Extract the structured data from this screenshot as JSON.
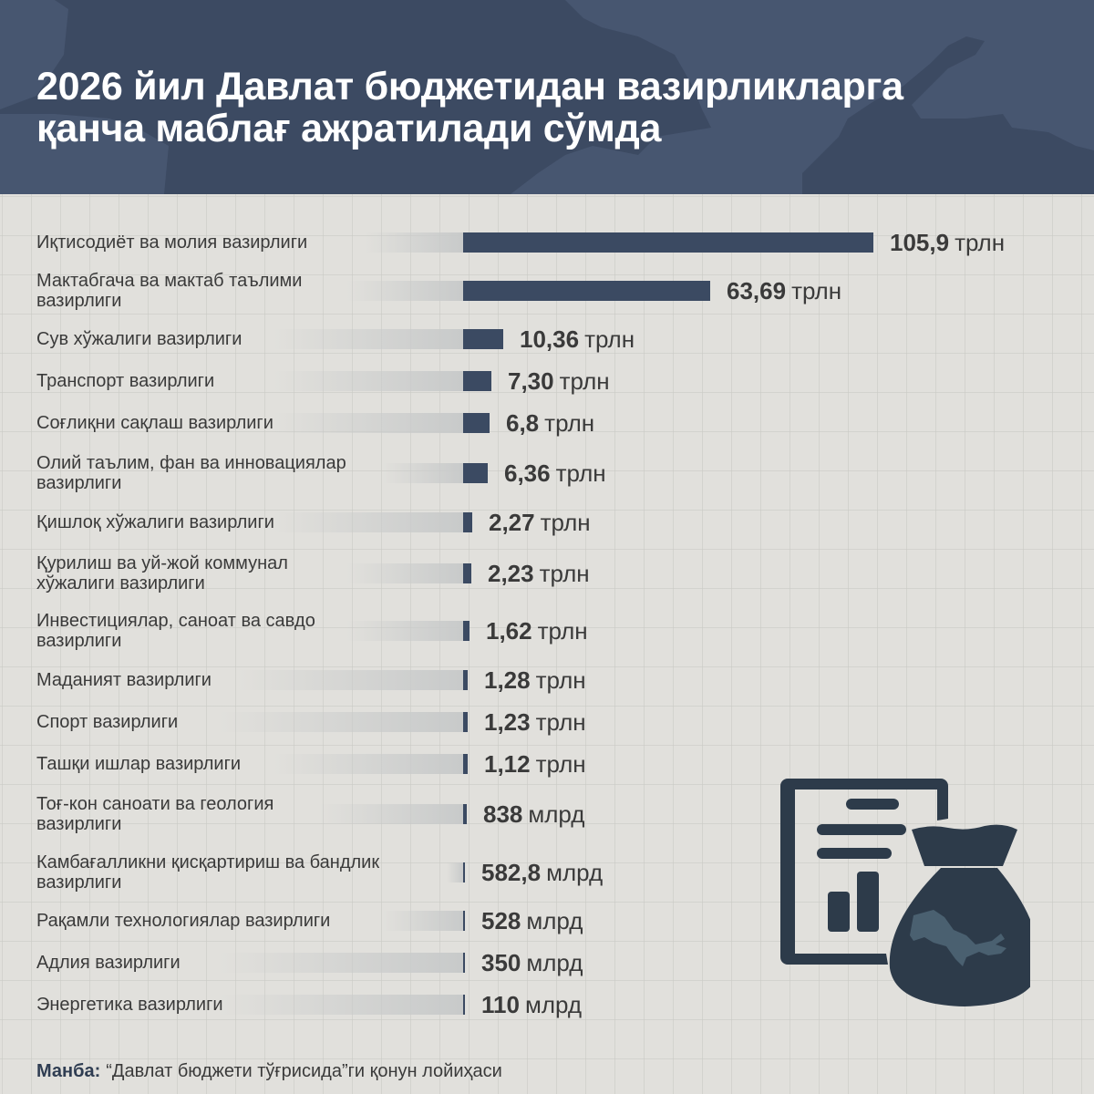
{
  "header": {
    "title_line1": "2026 йил Давлат бюджетидан вазирликларга",
    "title_line2": "қанча маблағ ажратилади сўмда",
    "background_color": "#475670",
    "map_shape_color": "#3c4a62"
  },
  "rows": [
    {
      "label_line1": "Иқтисодиёт ва молия вазирлиги",
      "label_line2": "",
      "value": "105,9",
      "unit": "трлн"
    },
    {
      "label_line1": "Мактабгача ва мактаб таълими",
      "label_line2": "вазирлиги",
      "value": "63,69",
      "unit": "трлн"
    },
    {
      "label_line1": "Сув хўжалиги вазирлиги",
      "label_line2": "",
      "value": "10,36",
      "unit": "трлн"
    },
    {
      "label_line1": "Транспорт вазирлиги",
      "label_line2": "",
      "value": "7,30",
      "unit": "трлн"
    },
    {
      "label_line1": "Соғлиқни сақлаш вазирлиги",
      "label_line2": "",
      "value": "6,8",
      "unit": "трлн"
    },
    {
      "label_line1": "Олий таълим, фан ва инновациялар",
      "label_line2": "вазирлиги",
      "value": "6,36",
      "unit": "трлн"
    },
    {
      "label_line1": "Қишлоқ хўжалиги вазирлиги",
      "label_line2": "",
      "value": "2,27",
      "unit": "трлн"
    },
    {
      "label_line1": "Қурилиш ва уй-жой коммунал",
      "label_line2": "хўжалиги вазирлиги",
      "value": "2,23",
      "unit": "трлн"
    },
    {
      "label_line1": "Инвестициялар, саноат ва савдо",
      "label_line2": "вазирлиги",
      "value": "1,62",
      "unit": "трлн"
    },
    {
      "label_line1": "Маданият вазирлиги",
      "label_line2": "",
      "value": "1,28",
      "unit": "трлн"
    },
    {
      "label_line1": "Спорт вазирлиги",
      "label_line2": "",
      "value": "1,23",
      "unit": "трлн"
    },
    {
      "label_line1": "Ташқи ишлар вазирлиги",
      "label_line2": "",
      "value": "1,12",
      "unit": "трлн"
    },
    {
      "label_line1": "Тоғ-кон саноати ва геология",
      "label_line2": "вазирлиги",
      "value": "838",
      "unit": "млрд"
    },
    {
      "label_line1": "Камбағалликни қисқартириш ва бандлик",
      "label_line2": "вазирлиги",
      "value": "582,8",
      "unit": "млрд"
    },
    {
      "label_line1": "Рақамли технологиялар вазирлиги",
      "label_line2": "",
      "value": "528",
      "unit": "млрд"
    },
    {
      "label_line1": "Адлия вазирлиги",
      "label_line2": "",
      "value": "350",
      "unit": "млрд"
    },
    {
      "label_line1": "Энергетика вазирлиги",
      "label_line2": "",
      "value": "110",
      "unit": "млрд"
    }
  ],
  "source": {
    "label": "Манба:",
    "text": "“Давлат бюджети тўғрисида”ги қонун лойиҳаси"
  },
  "icon": {
    "name": "budget-document-money-bag-icon",
    "color": "#2d3b4a",
    "map_color": "#4a6070"
  },
  "colors": {
    "bar": "#3b4a62",
    "background": "#e1e0dc",
    "text": "#3a3a3a"
  },
  "chart_data": {
    "type": "bar",
    "orientation": "horizontal",
    "title": "2026 йил Давлат бюджетидан вазирликларга қанча маблағ ажратилади сўмда",
    "xlabel": "",
    "ylabel": "",
    "unit_note": "values in trillion soʻm (трлн); млрд values converted to trillions",
    "categories": [
      "Иқтисодиёт ва молия вазирлиги",
      "Мактабгача ва мактаб таълими вазирлиги",
      "Сув хўжалиги вазирлиги",
      "Транспорт вазирлиги",
      "Соғлиқни сақлаш вазирлиги",
      "Олий таълим, фан ва инновациялар вазирлиги",
      "Қишлоқ хўжалиги вазирлиги",
      "Қурилиш ва уй-жой коммунал хўжалиги вазирлиги",
      "Инвестициялар, саноат ва савдо вазирлиги",
      "Маданият вазирлиги",
      "Спорт вазирлиги",
      "Ташқи ишлар вазирлиги",
      "Тоғ-кон саноати ва геология вазирлиги",
      "Камбағалликни қисқартириш ва бандлик вазирлиги",
      "Рақамли технологиялар вазирлиги",
      "Адлия вазирлиги",
      "Энергетика вазирлиги"
    ],
    "values": [
      105.9,
      63.69,
      10.36,
      7.3,
      6.8,
      6.36,
      2.27,
      2.23,
      1.62,
      1.28,
      1.23,
      1.12,
      0.838,
      0.5828,
      0.528,
      0.35,
      0.11
    ],
    "value_labels": [
      "105,9 трлн",
      "63,69 трлн",
      "10,36 трлн",
      "7,30 трлн",
      "6,8 трлн",
      "6,36 трлн",
      "2,27 трлн",
      "2,23 трлн",
      "1,62 трлн",
      "1,28 трлн",
      "1,23 трлн",
      "1,12 трлн",
      "838 млрд",
      "582,8 млрд",
      "528 млрд",
      "350 млрд",
      "110 млрд"
    ],
    "grid": true,
    "legend": null,
    "source": "Манба: “Давлат бюджети тўғрисида”ги қонун лойиҳаси"
  }
}
